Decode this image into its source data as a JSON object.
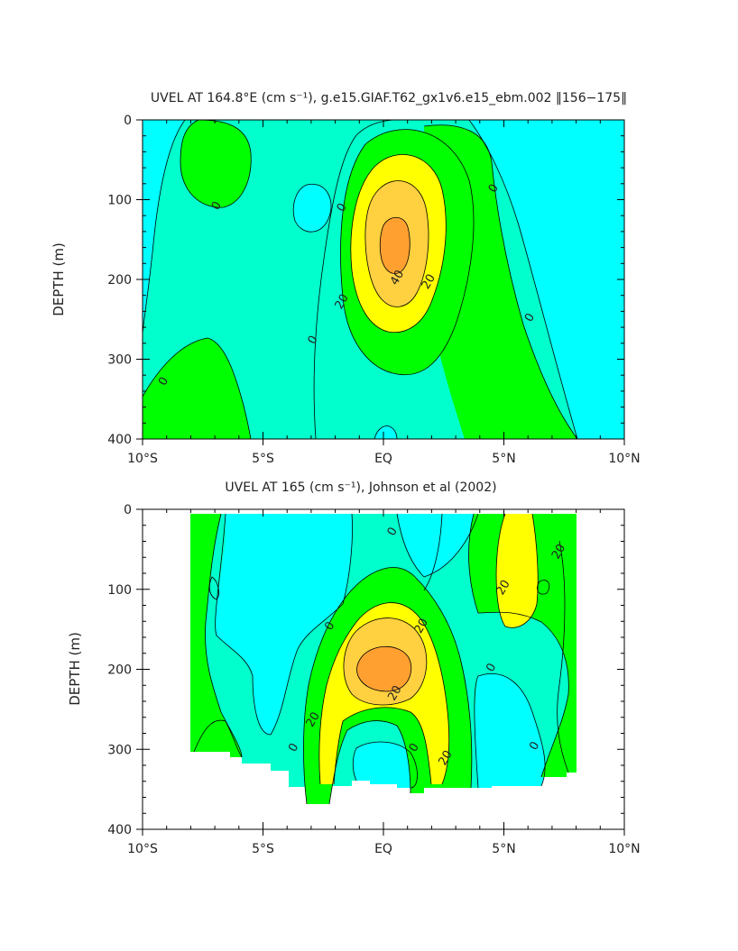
{
  "colors": {
    "level_neg": "#00ffff",
    "level_0_10": "#00ffcc",
    "level_10_20": "#00ff00",
    "level_20_30": "#ffff00",
    "level_30_40": "#ffd040",
    "level_40_plus": "#ffa030",
    "contour_line": "#000000"
  },
  "chart_data": [
    {
      "type": "heatmap",
      "title": "UVEL AT 164.8°E (cm s⁻¹), g.e15.GIAF.T62_gx1v6.e15_ebm.002 ‖156−175‖",
      "ylabel": "DEPTH (m)",
      "xlabel": "",
      "xlim": [
        -10,
        10
      ],
      "ylim": [
        400,
        0
      ],
      "x_ticks": [
        -10,
        -5,
        0,
        5,
        10
      ],
      "x_tick_labels": [
        "10°S",
        "5°S",
        "EQ",
        "5°N",
        "10°N"
      ],
      "y_ticks": [
        0,
        100,
        200,
        300,
        400
      ],
      "y_tick_labels": [
        "0",
        "100",
        "200",
        "300",
        "400"
      ],
      "contour_levels": [
        0,
        10,
        20,
        30,
        40
      ],
      "core": {
        "lat": 0,
        "depth": 165,
        "max_speed": 45
      },
      "contour_labels": [
        {
          "text": "0",
          "lat": -6.8,
          "depth": 110
        },
        {
          "text": "0",
          "lat": -9.0,
          "depth": 330
        },
        {
          "text": "0",
          "lat": -2.8,
          "depth": 278
        },
        {
          "text": "0",
          "lat": -1.6,
          "depth": 112
        },
        {
          "text": "0",
          "lat": 4.7,
          "depth": 88
        },
        {
          "text": "0",
          "lat": 6.2,
          "depth": 250
        },
        {
          "text": "20",
          "lat": -1.6,
          "depth": 230
        },
        {
          "text": "20",
          "lat": 2.0,
          "depth": 205
        },
        {
          "text": "40",
          "lat": 0.7,
          "depth": 200
        }
      ]
    },
    {
      "type": "heatmap",
      "title": "UVEL AT 165 (cm s⁻¹), Johnson et al (2002)",
      "ylabel": "DEPTH (m)",
      "xlabel": "",
      "xlim": [
        -10,
        10
      ],
      "ylim": [
        400,
        0
      ],
      "x_ticks": [
        -10,
        -5,
        0,
        5,
        10
      ],
      "x_tick_labels": [
        "10°S",
        "5°S",
        "EQ",
        "5°N",
        "10°N"
      ],
      "y_ticks": [
        0,
        100,
        200,
        300,
        400
      ],
      "y_tick_labels": [
        "0",
        "100",
        "200",
        "300",
        "400"
      ],
      "contour_levels": [
        0,
        10,
        20,
        30,
        40
      ],
      "data_extent": {
        "lat": [
          -8,
          8
        ],
        "depth": [
          0,
          365
        ]
      },
      "core": {
        "lat": -0.2,
        "depth": 185,
        "max_speed": 42
      },
      "contour_labels": [
        {
          "text": "0",
          "lat": 0.5,
          "depth": 30
        },
        {
          "text": "20",
          "lat": 7.4,
          "depth": 55
        },
        {
          "text": "20",
          "lat": 5.1,
          "depth": 100
        },
        {
          "text": "20",
          "lat": 1.7,
          "depth": 148
        },
        {
          "text": "0",
          "lat": -2.1,
          "depth": 148
        },
        {
          "text": "0",
          "lat": 4.6,
          "depth": 200
        },
        {
          "text": "20",
          "lat": -2.8,
          "depth": 265
        },
        {
          "text": "20",
          "lat": 0.6,
          "depth": 232
        },
        {
          "text": "0",
          "lat": -3.6,
          "depth": 300
        },
        {
          "text": "0",
          "lat": 1.4,
          "depth": 300
        },
        {
          "text": "20",
          "lat": 2.7,
          "depth": 313
        },
        {
          "text": "0",
          "lat": 6.4,
          "depth": 298
        }
      ]
    }
  ]
}
